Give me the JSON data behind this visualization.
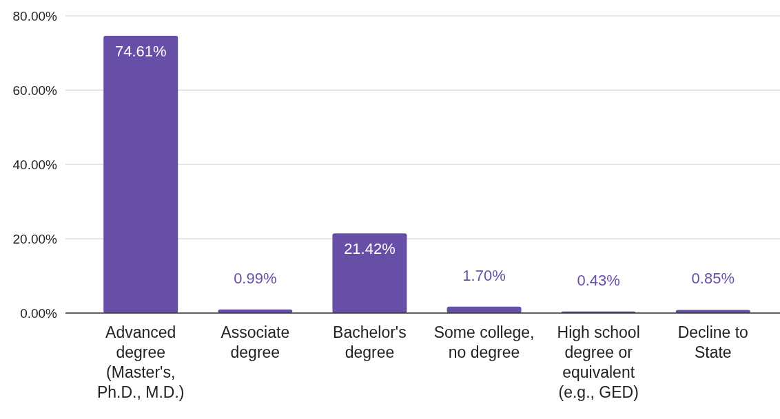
{
  "chart_data": {
    "type": "bar",
    "categories": [
      "Advanced degree (Master's, Ph.D., M.D.)",
      "Associate degree",
      "Bachelor's degree",
      "Some college, no degree",
      "High school degree or equivalent (e.g., GED)",
      "Decline to State"
    ],
    "values": [
      74.61,
      0.99,
      21.42,
      1.7,
      0.43,
      0.85
    ],
    "value_labels": [
      "74.61%",
      "0.99%",
      "21.42%",
      "1.70%",
      "0.43%",
      "0.85%"
    ],
    "color": "#674ea7",
    "ylim": [
      0,
      80
    ],
    "yticks": [
      {
        "value": 0,
        "label": "0.00%"
      },
      {
        "value": 20,
        "label": "20.00%"
      },
      {
        "value": 40,
        "label": "40.00%"
      },
      {
        "value": 60,
        "label": "60.00%"
      },
      {
        "value": 80,
        "label": "80.00%"
      }
    ],
    "grid": "y"
  }
}
